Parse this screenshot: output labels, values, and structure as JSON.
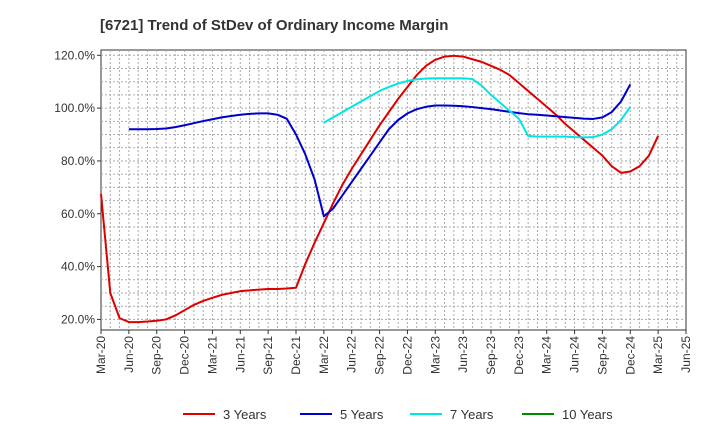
{
  "chart_data": {
    "type": "line",
    "title": "[6721]  Trend of StDev of Ordinary Income Margin",
    "xlabel": "",
    "ylabel": "",
    "ylim": [
      16,
      122
    ],
    "y_ticks": [
      20,
      40,
      60,
      80,
      100,
      120
    ],
    "y_tick_labels": [
      "20.0%",
      "40.0%",
      "60.0%",
      "80.0%",
      "100.0%",
      "120.0%"
    ],
    "x_ticks": [
      "Mar-20",
      "Jun-20",
      "Sep-20",
      "Dec-20",
      "Mar-21",
      "Jun-21",
      "Sep-21",
      "Dec-21",
      "Mar-22",
      "Jun-22",
      "Sep-22",
      "Dec-22",
      "Mar-23",
      "Jun-23",
      "Sep-23",
      "Dec-23",
      "Mar-24",
      "Jun-24",
      "Sep-24",
      "Dec-24",
      "Mar-25",
      "Jun-25"
    ],
    "grid": true,
    "legend_position": "bottom",
    "series": [
      {
        "name": "3 Years",
        "color": "#dd0000",
        "points": [
          [
            0,
            67.5
          ],
          [
            1,
            30.0
          ],
          [
            2,
            20.5
          ],
          [
            3,
            19.0
          ],
          [
            4,
            19.0
          ],
          [
            5,
            19.2
          ],
          [
            6,
            19.5
          ],
          [
            7,
            20.0
          ],
          [
            8,
            21.5
          ],
          [
            9,
            23.5
          ],
          [
            10,
            25.5
          ],
          [
            11,
            27.0
          ],
          [
            12,
            28.2
          ],
          [
            13,
            29.3
          ],
          [
            14,
            30.0
          ],
          [
            15,
            30.7
          ],
          [
            16,
            31.0
          ],
          [
            17,
            31.3
          ],
          [
            18,
            31.5
          ],
          [
            19,
            31.5
          ],
          [
            20,
            31.7
          ],
          [
            21,
            32.0
          ],
          [
            22,
            41.0
          ],
          [
            23,
            49.0
          ],
          [
            24,
            56.5
          ],
          [
            25,
            64.0
          ],
          [
            26,
            71.0
          ],
          [
            27,
            77.0
          ],
          [
            28,
            82.5
          ],
          [
            29,
            88.0
          ],
          [
            30,
            93.5
          ],
          [
            31,
            98.5
          ],
          [
            32,
            103.5
          ],
          [
            33,
            108.0
          ],
          [
            34,
            112.5
          ],
          [
            35,
            116.0
          ],
          [
            36,
            118.3
          ],
          [
            37,
            119.5
          ],
          [
            38,
            119.8
          ],
          [
            39,
            119.5
          ],
          [
            40,
            118.5
          ],
          [
            41,
            117.5
          ],
          [
            42,
            116.0
          ],
          [
            43,
            114.5
          ],
          [
            44,
            112.5
          ],
          [
            45,
            109.5
          ],
          [
            46,
            106.5
          ],
          [
            47,
            103.5
          ],
          [
            48,
            100.5
          ],
          [
            49,
            97.5
          ],
          [
            50,
            94.0
          ],
          [
            51,
            91.0
          ],
          [
            52,
            88.0
          ],
          [
            53,
            85.0
          ],
          [
            54,
            82.0
          ],
          [
            55,
            78.0
          ],
          [
            56,
            75.5
          ],
          [
            57,
            76.0
          ],
          [
            58,
            78.0
          ],
          [
            59,
            82.0
          ],
          [
            60,
            89.5
          ]
        ]
      },
      {
        "name": "5 Years",
        "color": "#0000cc",
        "points": [
          [
            3,
            92.0
          ],
          [
            4,
            92.0
          ],
          [
            5,
            92.0
          ],
          [
            6,
            92.1
          ],
          [
            7,
            92.3
          ],
          [
            8,
            92.8
          ],
          [
            9,
            93.5
          ],
          [
            10,
            94.3
          ],
          [
            11,
            95.1
          ],
          [
            12,
            95.8
          ],
          [
            13,
            96.5
          ],
          [
            14,
            97.0
          ],
          [
            15,
            97.5
          ],
          [
            16,
            97.8
          ],
          [
            17,
            98.0
          ],
          [
            18,
            98.0
          ],
          [
            19,
            97.5
          ],
          [
            20,
            96.0
          ],
          [
            21,
            90.0
          ],
          [
            22,
            82.5
          ],
          [
            23,
            73.0
          ],
          [
            24,
            59.0
          ],
          [
            25,
            62.0
          ],
          [
            26,
            67.0
          ],
          [
            27,
            72.0
          ],
          [
            28,
            77.0
          ],
          [
            29,
            82.0
          ],
          [
            30,
            87.0
          ],
          [
            31,
            92.0
          ],
          [
            32,
            95.5
          ],
          [
            33,
            98.0
          ],
          [
            34,
            99.6
          ],
          [
            35,
            100.5
          ],
          [
            36,
            101.0
          ],
          [
            37,
            101.0
          ],
          [
            38,
            100.9
          ],
          [
            39,
            100.7
          ],
          [
            40,
            100.4
          ],
          [
            41,
            100.0
          ],
          [
            42,
            99.6
          ],
          [
            43,
            99.1
          ],
          [
            44,
            98.6
          ],
          [
            45,
            98.1
          ],
          [
            46,
            97.7
          ],
          [
            47,
            97.5
          ],
          [
            48,
            97.2
          ],
          [
            49,
            96.9
          ],
          [
            50,
            96.6
          ],
          [
            51,
            96.3
          ],
          [
            52,
            96.0
          ],
          [
            53,
            95.9
          ],
          [
            54,
            96.5
          ],
          [
            55,
            98.5
          ],
          [
            56,
            102.5
          ],
          [
            57,
            109.0
          ]
        ]
      },
      {
        "name": "7 Years",
        "color": "#00e5e5",
        "points": [
          [
            24,
            94.5
          ],
          [
            25,
            96.5
          ],
          [
            26,
            98.5
          ],
          [
            27,
            100.5
          ],
          [
            28,
            102.5
          ],
          [
            29,
            104.5
          ],
          [
            30,
            106.5
          ],
          [
            31,
            108.0
          ],
          [
            32,
            109.3
          ],
          [
            33,
            110.3
          ],
          [
            34,
            110.9
          ],
          [
            35,
            111.2
          ],
          [
            36,
            111.3
          ],
          [
            37,
            111.3
          ],
          [
            38,
            111.3
          ],
          [
            39,
            111.3
          ],
          [
            40,
            111.0
          ],
          [
            41,
            108.5
          ],
          [
            42,
            105.0
          ],
          [
            43,
            102.0
          ],
          [
            44,
            99.0
          ],
          [
            45,
            96.0
          ],
          [
            46,
            89.5
          ],
          [
            47,
            89.2
          ],
          [
            48,
            89.2
          ],
          [
            49,
            89.2
          ],
          [
            50,
            89.2
          ],
          [
            51,
            89.0
          ],
          [
            52,
            88.9
          ],
          [
            53,
            89.0
          ],
          [
            54,
            90.0
          ],
          [
            55,
            92.0
          ],
          [
            56,
            95.5
          ],
          [
            57,
            100.5
          ]
        ]
      },
      {
        "name": "10 Years",
        "color": "#008800",
        "points": []
      }
    ]
  }
}
